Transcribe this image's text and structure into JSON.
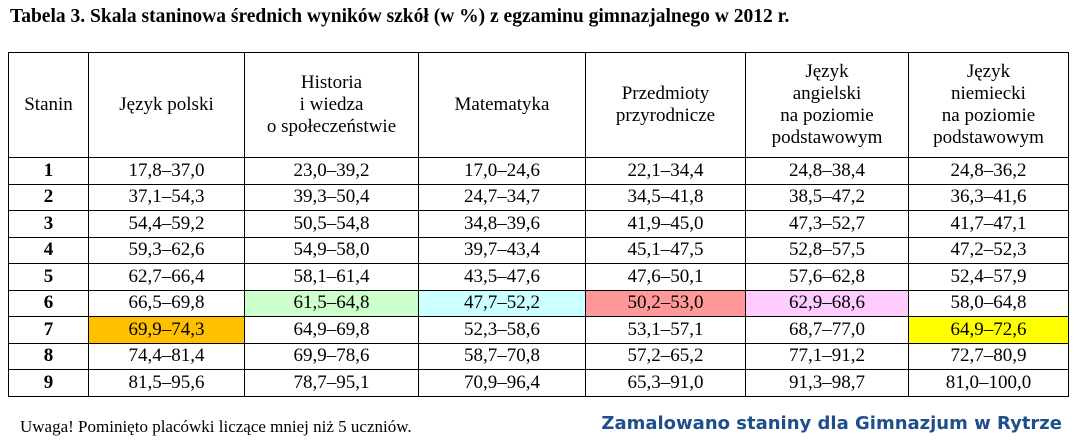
{
  "title": "Tabela 3. Skala staninowa średnich wyników szkół (w %) z egzaminu gimnazjalnego w 2012 r.",
  "table": {
    "header": [
      [
        "Stanin"
      ],
      [
        "Język polski"
      ],
      [
        "Historia",
        "i wiedza",
        "o społeczeństwie"
      ],
      [
        "Matematyka"
      ],
      [
        "Przedmioty",
        "przyrodnicze"
      ],
      [
        "Język",
        "angielski",
        "na poziomie",
        "podstawowym"
      ],
      [
        "Język",
        "niemiecki",
        "na poziomie",
        "podstawowym"
      ]
    ],
    "rows": [
      [
        "1",
        "17,8–37,0",
        "23,0–39,2",
        "17,0–24,6",
        "22,1–34,4",
        "24,8–38,4",
        "24,8–36,2"
      ],
      [
        "2",
        "37,1–54,3",
        "39,3–50,4",
        "24,7–34,7",
        "34,5–41,8",
        "38,5–47,2",
        "36,3–41,6"
      ],
      [
        "3",
        "54,4–59,2",
        "50,5–54,8",
        "34,8–39,6",
        "41,9–45,0",
        "47,3–52,7",
        "41,7–47,1"
      ],
      [
        "4",
        "59,3–62,6",
        "54,9–58,0",
        "39,7–43,4",
        "45,1–47,5",
        "52,8–57,5",
        "47,2–52,3"
      ],
      [
        "5",
        "62,7–66,4",
        "58,1–61,4",
        "43,5–47,6",
        "47,6–50,1",
        "57,6–62,8",
        "52,4–57,9"
      ],
      [
        "6",
        "66,5–69,8",
        "61,5–64,8",
        "47,7–52,2",
        "50,2–53,0",
        "62,9–68,6",
        "58,0–64,8"
      ],
      [
        "7",
        "69,9–74,3",
        "64,9–69,8",
        "52,3–58,6",
        "53,1–57,1",
        "68,7–77,0",
        "64,9–72,6"
      ],
      [
        "8",
        "74,4–81,4",
        "69,9–78,6",
        "58,7–70,8",
        "57,2–65,2",
        "77,1–91,2",
        "72,7–80,9"
      ],
      [
        "9",
        "81,5–95,6",
        "78,7–95,1",
        "70,9–96,4",
        "65,3–91,0",
        "91,3–98,7",
        "81,0–100,0"
      ]
    ]
  },
  "note": "Uwaga! Pominięto placówki liczące mniej niż 5 uczniów.",
  "highlight_note": "Zamalowano staniny dla Gimnazjum w Rytrze"
}
